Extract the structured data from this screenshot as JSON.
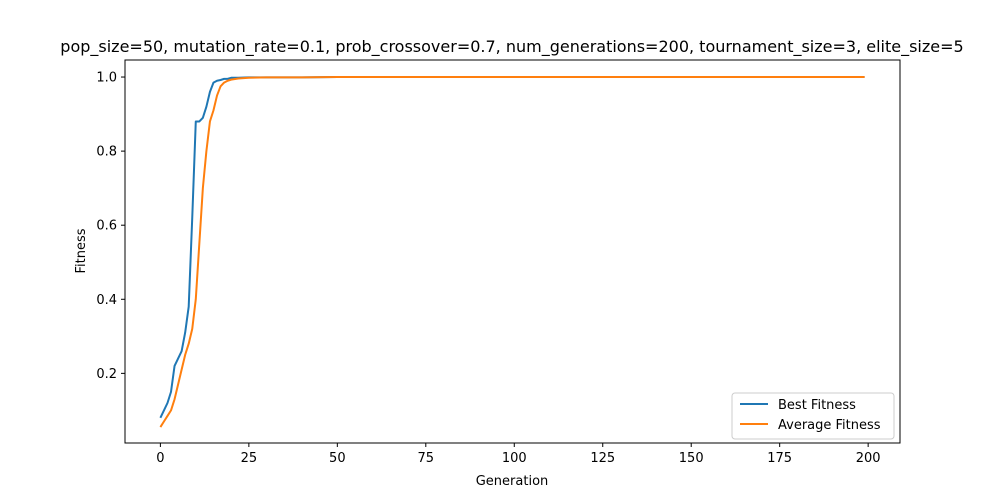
{
  "chart_data": {
    "type": "line",
    "title": "pop_size=50, mutation_rate=0.1, prob_crossover=0.7, num_generations=200, tournament_size=3, elite_size=5",
    "xlabel": "Generation",
    "ylabel": "Fitness",
    "xlim": [
      -10,
      209
    ],
    "ylim": [
      0.012,
      1.046
    ],
    "xticks": [
      0,
      25,
      50,
      75,
      100,
      125,
      150,
      175,
      200
    ],
    "yticks": [
      0.2,
      0.4,
      0.6,
      0.8,
      1.0
    ],
    "ytick_labels": [
      "0.2",
      "0.4",
      "0.6",
      "0.8",
      "1.0"
    ],
    "grid": false,
    "legend_position": "lower-right",
    "series": [
      {
        "name": "Best Fitness",
        "color": "#1f77b4",
        "x": [
          0,
          1,
          2,
          3,
          4,
          5,
          6,
          7,
          8,
          9,
          10,
          11,
          12,
          13,
          14,
          15,
          16,
          17,
          18,
          19,
          20,
          22,
          25,
          30,
          40,
          50,
          100,
          150,
          199
        ],
        "y": [
          0.08,
          0.1,
          0.12,
          0.15,
          0.22,
          0.24,
          0.26,
          0.31,
          0.38,
          0.62,
          0.88,
          0.88,
          0.89,
          0.92,
          0.96,
          0.985,
          0.99,
          0.992,
          0.995,
          0.995,
          0.998,
          0.998,
          0.999,
          0.999,
          0.999,
          1.0,
          1.0,
          1.0,
          1.0
        ]
      },
      {
        "name": "Average Fitness",
        "color": "#ff7f0e",
        "x": [
          0,
          1,
          2,
          3,
          4,
          5,
          6,
          7,
          8,
          9,
          10,
          11,
          12,
          13,
          14,
          15,
          16,
          17,
          18,
          19,
          20,
          22,
          25,
          30,
          40,
          50,
          100,
          150,
          199
        ],
        "y": [
          0.055,
          0.07,
          0.085,
          0.1,
          0.13,
          0.17,
          0.21,
          0.25,
          0.28,
          0.32,
          0.4,
          0.55,
          0.7,
          0.8,
          0.88,
          0.91,
          0.95,
          0.975,
          0.985,
          0.99,
          0.993,
          0.996,
          0.998,
          0.999,
          0.999,
          1.0,
          1.0,
          1.0,
          1.0
        ]
      }
    ]
  }
}
